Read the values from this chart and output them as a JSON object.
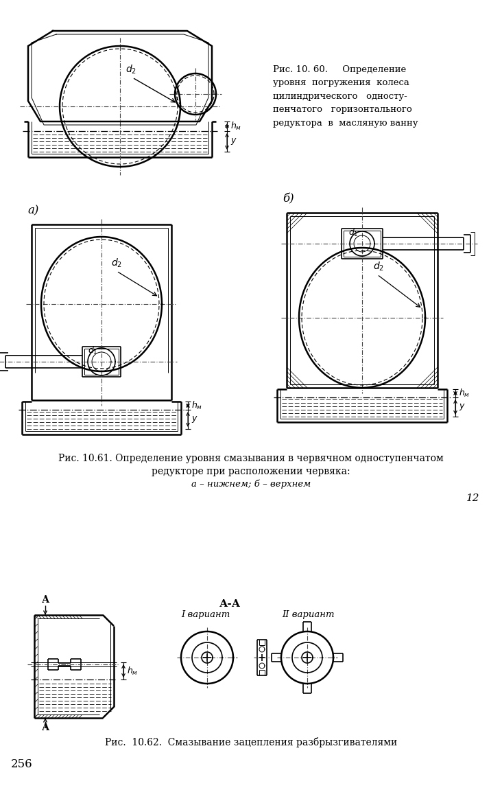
{
  "bg_color": "#ffffff",
  "line_color": "#000000",
  "fig_width": 7.32,
  "fig_height": 11.51,
  "caption1": "Рис. 10. 60.     Определение\nуровня  погружения  колеса\nцилиндрического   односту-\nпенчатого   горизонтального\nредуктора  в  масляную ванну",
  "caption2": "Рис. 10.61. Определение уровня смазывания в червячном одноступенчатом\nредукторе при расположении червяка:",
  "caption2b": "а – нижнем; б – верхнем",
  "caption3": "Рис.  10.62.  Смазывание зацепления разбрызгивателями",
  "label_a": "а)",
  "label_b": "б)",
  "page_num": "256",
  "page_ref": "12"
}
